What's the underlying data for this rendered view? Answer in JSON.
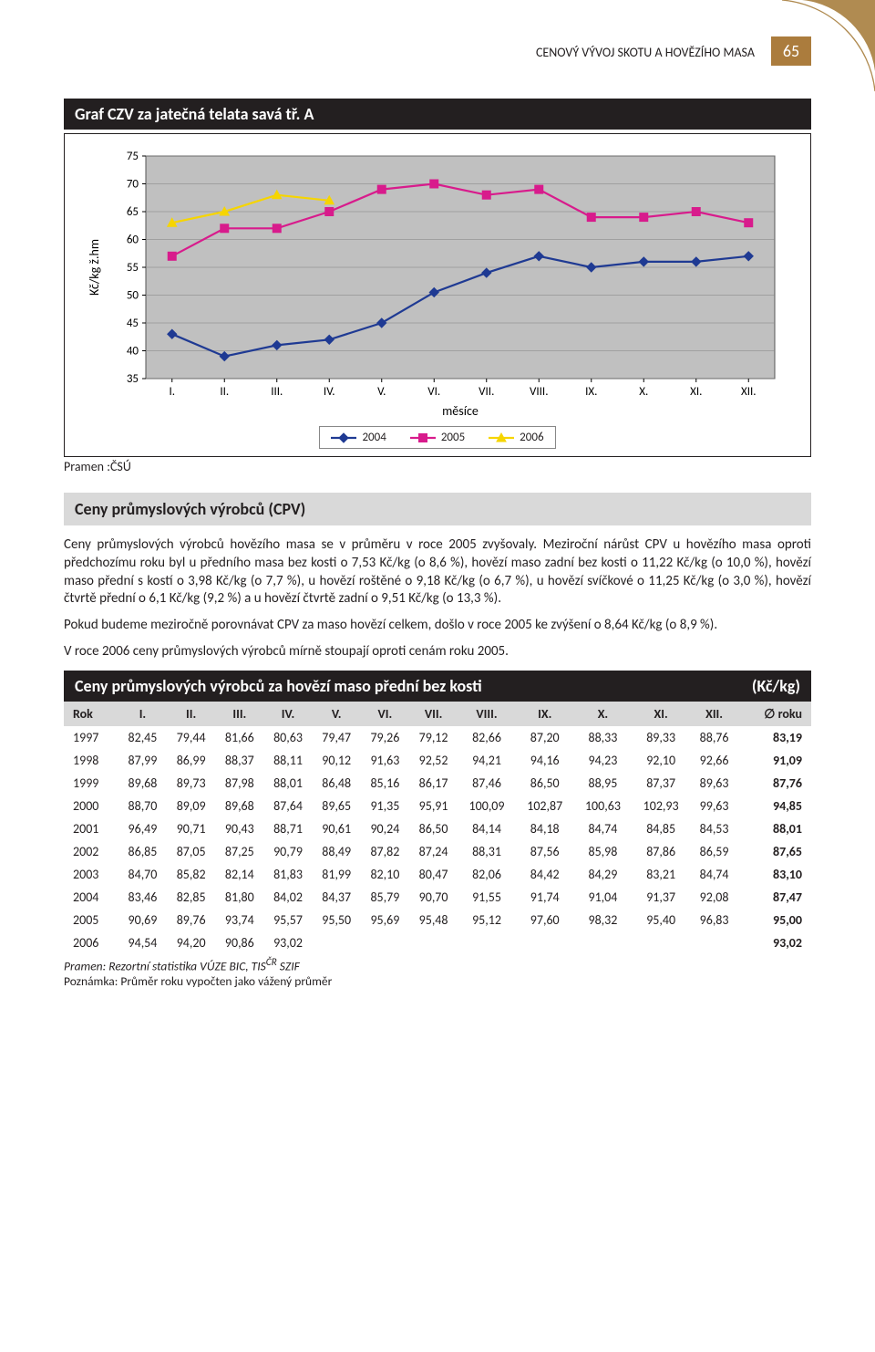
{
  "header": {
    "title": "CENOVÝ VÝVOJ SKOTU A HOVĚZÍHO MASA",
    "page_number": "65"
  },
  "chart": {
    "title": "Graf CZV za jatečná telata savá tř. A",
    "type": "line",
    "y_label": "Kč/kg ž.hm",
    "x_label": "měsíce",
    "x_categories": [
      "I.",
      "II.",
      "III.",
      "IV.",
      "V.",
      "VI.",
      "VII.",
      "VIII.",
      "IX.",
      "X.",
      "XI.",
      "XII."
    ],
    "ylim": [
      35,
      75
    ],
    "ytick_step": 5,
    "background_color": "#ffffff",
    "plot_background": "#c0c0c0",
    "grid_color": "#808080",
    "series": [
      {
        "name": "2004",
        "color": "#1f3a93",
        "marker": "diamond",
        "values": [
          43,
          39,
          41,
          42,
          45,
          50.5,
          54,
          57,
          55,
          56,
          56,
          57
        ]
      },
      {
        "name": "2005",
        "color": "#d81b8c",
        "marker": "square",
        "values": [
          57,
          62,
          62,
          65,
          69,
          70,
          68,
          69,
          64,
          64,
          65,
          63
        ]
      },
      {
        "name": "2006",
        "color": "#f6d500",
        "marker": "triangle",
        "values": [
          63,
          65,
          68,
          67
        ]
      }
    ],
    "source": "Pramen :ČSÚ"
  },
  "cpv_section": {
    "title": "Ceny průmyslových výrobců (CPV)",
    "para1": "Ceny průmyslových výrobců hovězího masa se v průměru v roce 2005 zvyšovaly. Meziroční nárůst CPV u hovězího masa oproti předchozímu roku byl u předního masa bez kosti o 7,53 Kč/kg (o 8,6 %), hovězí maso zadní bez kosti o 11,22 Kč/kg (o 10,0 %), hovězí maso přední s kostí o 3,98 Kč/kg (o 7,7 %), u hovězí roštěné o 9,18 Kč/kg (o 6,7 %), u hovězí svíčkové o 11,25 Kč/kg (o 3,0 %), hovězí čtvrtě přední o 6,1 Kč/kg (9,2 %) a u hovězí čtvrtě zadní o 9,51 Kč/kg (o 13,3 %).",
    "para2": "Pokud budeme meziročně porovnávat CPV za maso hovězí celkem, došlo v roce 2005 ke zvýšení o 8,64 Kč/kg (o 8,9 %).",
    "para3": "V roce 2006 ceny průmyslových výrobců mírně stoupají oproti cenám roku 2005."
  },
  "table": {
    "title": "Ceny průmyslových výrobců za hovězí maso přední bez kosti",
    "unit": "(Kč/kg)",
    "columns": [
      "Rok",
      "I.",
      "II.",
      "III.",
      "IV.",
      "V.",
      "VI.",
      "VII.",
      "VIII.",
      "IX.",
      "X.",
      "XI.",
      "XII.",
      "∅ roku"
    ],
    "rows": [
      [
        "1997",
        "82,45",
        "79,44",
        "81,66",
        "80,63",
        "79,47",
        "79,26",
        "79,12",
        "82,66",
        "87,20",
        "88,33",
        "89,33",
        "88,76",
        "83,19"
      ],
      [
        "1998",
        "87,99",
        "86,99",
        "88,37",
        "88,11",
        "90,12",
        "91,63",
        "92,52",
        "94,21",
        "94,16",
        "94,23",
        "92,10",
        "92,66",
        "91,09"
      ],
      [
        "1999",
        "89,68",
        "89,73",
        "87,98",
        "88,01",
        "86,48",
        "85,16",
        "86,17",
        "87,46",
        "86,50",
        "88,95",
        "87,37",
        "89,63",
        "87,76"
      ],
      [
        "2000",
        "88,70",
        "89,09",
        "89,68",
        "87,64",
        "89,65",
        "91,35",
        "95,91",
        "100,09",
        "102,87",
        "100,63",
        "102,93",
        "99,63",
        "94,85"
      ],
      [
        "2001",
        "96,49",
        "90,71",
        "90,43",
        "88,71",
        "90,61",
        "90,24",
        "86,50",
        "84,14",
        "84,18",
        "84,74",
        "84,85",
        "84,53",
        "88,01"
      ],
      [
        "2002",
        "86,85",
        "87,05",
        "87,25",
        "90,79",
        "88,49",
        "87,82",
        "87,24",
        "88,31",
        "87,56",
        "85,98",
        "87,86",
        "86,59",
        "87,65"
      ],
      [
        "2003",
        "84,70",
        "85,82",
        "82,14",
        "81,83",
        "81,99",
        "82,10",
        "80,47",
        "82,06",
        "84,42",
        "84,29",
        "83,21",
        "84,74",
        "83,10"
      ],
      [
        "2004",
        "83,46",
        "82,85",
        "81,80",
        "84,02",
        "84,37",
        "85,79",
        "90,70",
        "91,55",
        "91,74",
        "91,04",
        "91,37",
        "92,08",
        "87,47"
      ],
      [
        "2005",
        "90,69",
        "89,76",
        "93,74",
        "95,57",
        "95,50",
        "95,69",
        "95,48",
        "95,12",
        "97,60",
        "98,32",
        "95,40",
        "96,83",
        "95,00"
      ],
      [
        "2006",
        "94,54",
        "94,20",
        "90,86",
        "93,02",
        "",
        "",
        "",
        "",
        "",
        "",
        "",
        "",
        "93,02"
      ]
    ],
    "source": "Pramen: Rezortní statistika VÚZE BIC, TIS",
    "source_sup": "ČR",
    "source_suffix": " SZIF",
    "note": "Poznámka: Průměr roku vypočten jako vážený průměr"
  },
  "corner_color": "#b08b51"
}
